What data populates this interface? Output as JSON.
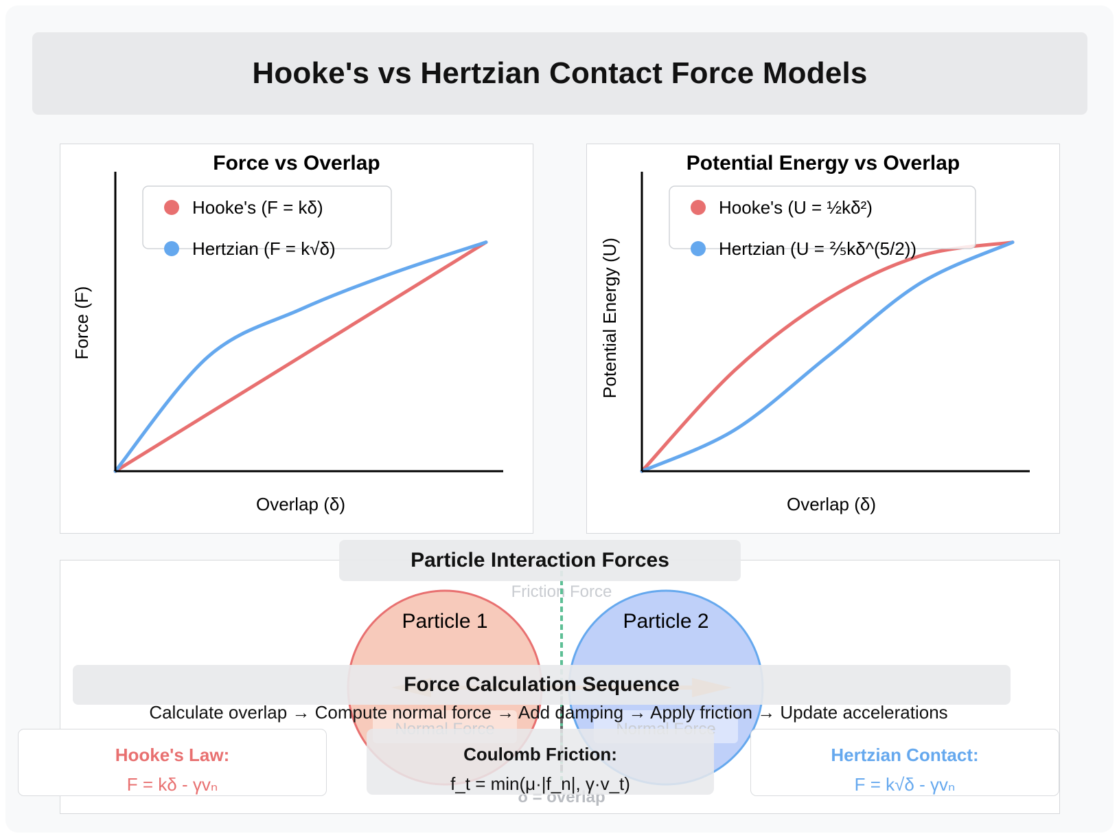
{
  "title": "Hooke's vs Hertzian Contact Force Models",
  "colors": {
    "hooke": "#e87070",
    "hertz": "#65a8ee",
    "p1_fill": "#f6c4b4",
    "p2_fill": "#b8cbf8",
    "arrow": "#ee8a3a",
    "friction": "#5dbf95"
  },
  "force_chart": {
    "title": "Force vs Overlap",
    "xlabel": "Overlap (δ)",
    "ylabel": "Force (F)",
    "legend": [
      "Hooke's (F = kδ)",
      "Hertzian (F = k√δ)"
    ]
  },
  "energy_chart": {
    "title": "Potential Energy vs Overlap",
    "xlabel": "Overlap (δ)",
    "ylabel": "Potential Energy (U)",
    "legend": [
      "Hooke's (U = ½kδ²)",
      "Hertzian (U = ⅖kδ^(5/2))"
    ]
  },
  "chart_data": [
    {
      "type": "line",
      "title": "Force vs Overlap",
      "xlabel": "Overlap (δ)",
      "ylabel": "Force (F)",
      "xlim": [
        0,
        1
      ],
      "ylim": [
        0,
        1.2
      ],
      "legend_position": "top-left",
      "series": [
        {
          "name": "Hooke's (F = kδ)",
          "x": [
            0,
            0.25,
            0.5,
            0.75,
            1
          ],
          "y": [
            0,
            0.25,
            0.5,
            0.75,
            1
          ]
        },
        {
          "name": "Hertzian (F = k√δ)",
          "x": [
            0,
            0.25,
            0.5,
            0.75,
            1
          ],
          "y": [
            0,
            0.5,
            0.707,
            0.866,
            1
          ]
        }
      ]
    },
    {
      "type": "line",
      "title": "Potential Energy vs Overlap",
      "xlabel": "Overlap (δ)",
      "ylabel": "Potential Energy (U)",
      "xlim": [
        0,
        1
      ],
      "ylim": [
        0,
        1.2
      ],
      "legend_position": "top-left",
      "series": [
        {
          "name": "Hooke's (U = ½kδ²)",
          "x": [
            0,
            0.25,
            0.5,
            0.75,
            1
          ],
          "y": [
            0,
            0.44,
            0.75,
            0.94,
            1
          ]
        },
        {
          "name": "Hertzian (U = ⅖kδ^(5/2))",
          "x": [
            0,
            0.25,
            0.5,
            0.75,
            1
          ],
          "y": [
            0,
            0.18,
            0.5,
            0.82,
            1
          ]
        }
      ]
    }
  ],
  "particles": {
    "section_title": "Particle Interaction Forces",
    "p1_label": "Particle 1",
    "p2_label": "Particle 2",
    "friction_label": "Friction Force",
    "normal_label_1": "Normal Force",
    "normal_label_2": "Normal Force",
    "overlap_label": "δ = overlap"
  },
  "sequence": {
    "title": "Force Calculation Sequence",
    "steps": "Calculate overlap → Compute normal force → Add damping → Apply friction → Update accelerations"
  },
  "boxes": {
    "hooke": {
      "title": "Hooke's Law:",
      "formula": "F = kδ - γvₙ"
    },
    "friction": {
      "title": "Coulomb Friction:",
      "formula": "f_t = min(μ·|f_n|, γ·v_t)"
    },
    "hertz": {
      "title": "Hertzian Contact:",
      "formula": "F = k√δ - γvₙ"
    }
  }
}
